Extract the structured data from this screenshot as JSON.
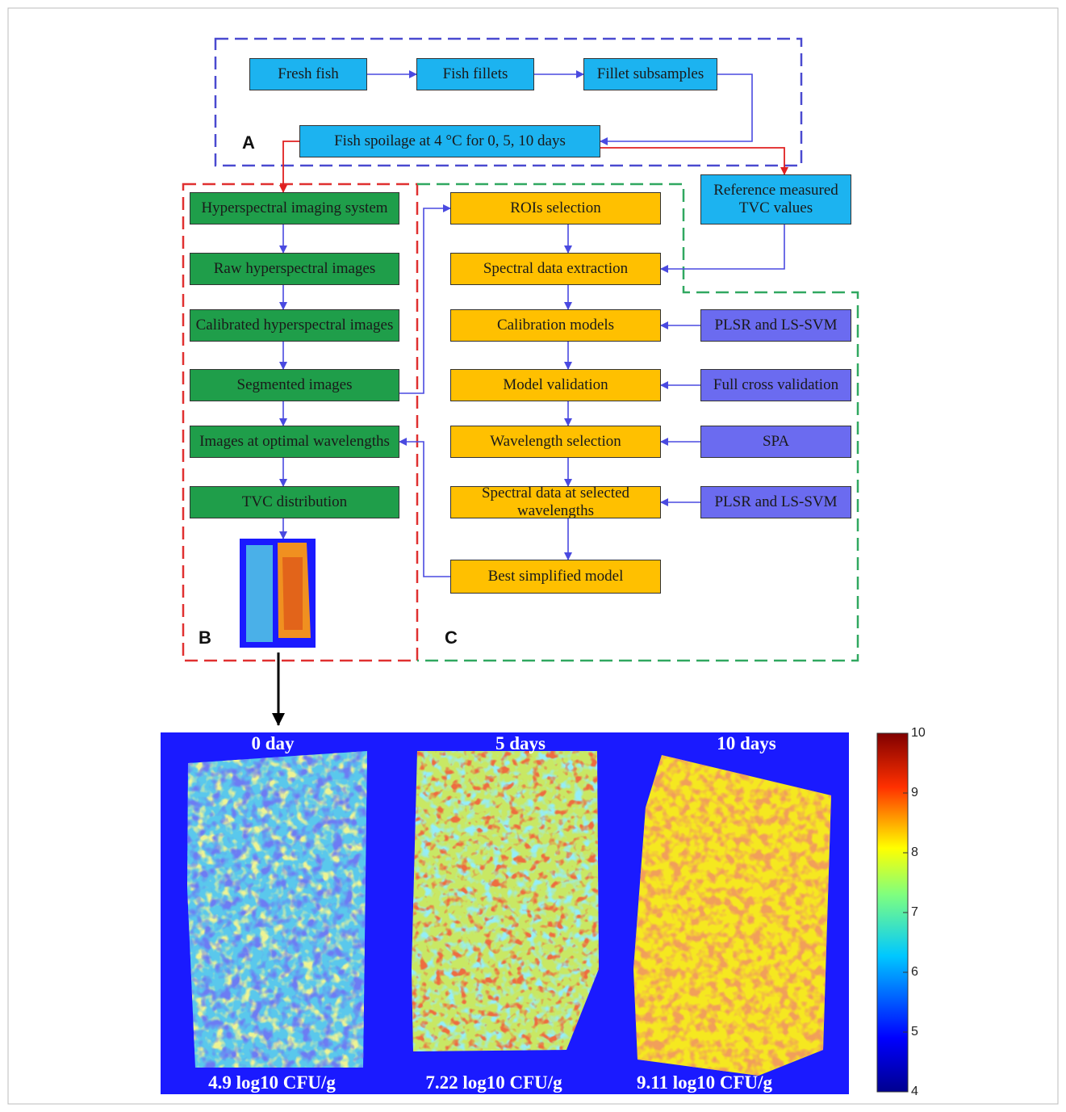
{
  "section_labels": [
    "A",
    "B",
    "C"
  ],
  "nodes": [
    {
      "label": "Fresh fish"
    },
    {
      "label": "Fish fillets"
    },
    {
      "label": "Fillet subsamples"
    },
    {
      "label": "Fish spoilage  at 4 °C for 0, 5, 10 days"
    },
    {
      "label": "Reference measured TVC values"
    },
    {
      "label": "Hyperspectral imaging system"
    },
    {
      "label": "Raw hyperspectral  images"
    },
    {
      "label": "Calibrated hyperspectral images"
    },
    {
      "label": "Segmented  images"
    },
    {
      "label": "Images at optimal wavelengths"
    },
    {
      "label": "TVC distribution"
    },
    {
      "label": "ROIs selection"
    },
    {
      "label": "Spectral data extraction"
    },
    {
      "label": "Calibration models"
    },
    {
      "label": "Model validation"
    },
    {
      "label": "Wavelength selection"
    },
    {
      "label": "Spectral data at selected wavelengths"
    },
    {
      "label": "Best simplified model"
    },
    {
      "label": "PLSR and LS-SVM"
    },
    {
      "label": "Full cross validation"
    },
    {
      "label": "SPA"
    },
    {
      "label": "PLSR and LS-SVM"
    }
  ],
  "heatmap": {
    "panels": [
      {
        "title": "0 day",
        "caption": "4.9 log10 CFU/g"
      },
      {
        "title": "5 days",
        "caption": "7.22 log10 CFU/g"
      },
      {
        "title": "10 days",
        "caption": "9.11 log10 CFU/g"
      }
    ],
    "colorbar_ticks": [
      4,
      5,
      6,
      7,
      8,
      9,
      10
    ]
  }
}
